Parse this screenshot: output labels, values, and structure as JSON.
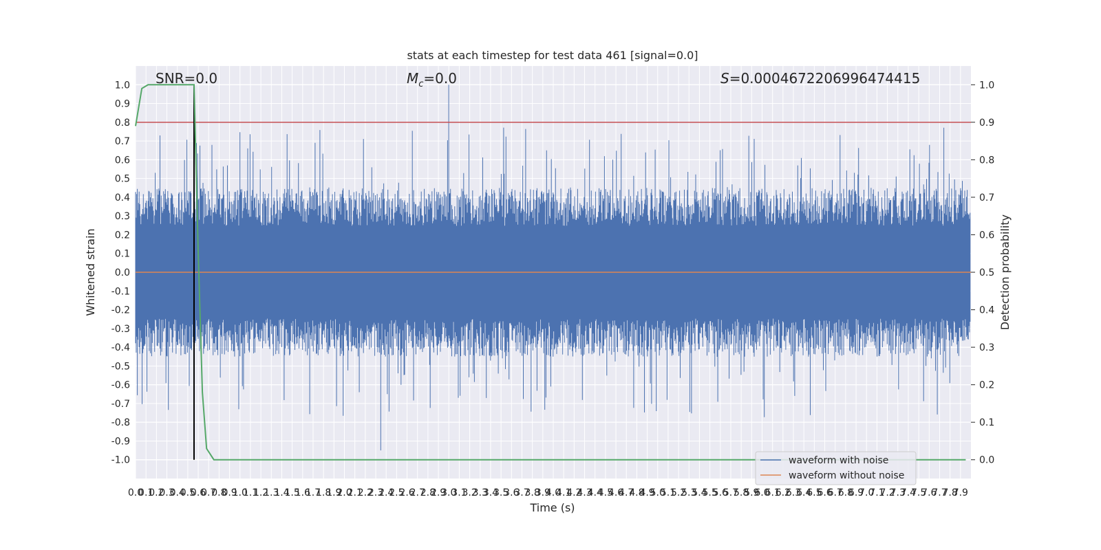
{
  "chart_data": {
    "type": "line",
    "title": "stats at each timestep for test data 461 [signal=0.0]",
    "xlabel": "Time (s)",
    "ylabel": "Whitened strain",
    "ylabel_right": "Detection probability",
    "xlim": [
      0,
      8
    ],
    "ylim": [
      -1.1,
      1.1
    ],
    "ylim_right": [
      -0.05,
      1.05
    ],
    "x_ticks": [
      "0.0",
      "0.1",
      "0.2",
      "0.3",
      "0.4",
      "0.5",
      "0.6",
      "0.7",
      "0.8",
      "0.9",
      "1.0",
      "1.1",
      "1.2",
      "1.3",
      "1.4",
      "1.5",
      "1.6",
      "1.7",
      "1.8",
      "1.9",
      "2.0",
      "2.1",
      "2.2",
      "2.3",
      "2.4",
      "2.5",
      "2.6",
      "2.7",
      "2.8",
      "2.9",
      "3.0",
      "3.1",
      "3.2",
      "3.3",
      "3.4",
      "3.5",
      "3.6",
      "3.7",
      "3.8",
      "3.9",
      "4.0",
      "4.1",
      "4.2",
      "4.3",
      "4.4",
      "4.5",
      "4.6",
      "4.7",
      "4.8",
      "4.9",
      "5.0",
      "5.1",
      "5.2",
      "5.3",
      "5.4",
      "5.5",
      "5.6",
      "5.7",
      "5.8",
      "5.9",
      "6.0",
      "6.1",
      "6.2",
      "6.3",
      "6.4",
      "6.5",
      "6.6",
      "6.7",
      "6.8",
      "6.9",
      "7.0",
      "7.1",
      "7.2",
      "7.3",
      "7.4",
      "7.5",
      "7.6",
      "7.7",
      "7.8",
      "7.9"
    ],
    "y_ticks": [
      "1.0",
      "0.9",
      "0.8",
      "0.7",
      "0.6",
      "0.5",
      "0.4",
      "0.3",
      "0.2",
      "0.1",
      "0.0",
      "-0.1",
      "-0.2",
      "-0.3",
      "-0.4",
      "-0.5",
      "-0.6",
      "-0.7",
      "-0.8",
      "-0.9",
      "-1.0"
    ],
    "y_ticks_right": [
      "1.0",
      "0.9",
      "0.8",
      "0.7",
      "0.6",
      "0.5",
      "0.4",
      "0.3",
      "0.2",
      "0.1",
      "0.0"
    ],
    "annotations": {
      "snr": "SNR=0.0",
      "mc_symbol": "M",
      "mc_sub": "c",
      "mc_value": "=0.0",
      "s_symbol": "S",
      "s_value": "=0.0004672206996474415"
    },
    "threshold_line_right": 0.9,
    "event_time": 0.56,
    "noise_envelope": {
      "typical_max": 0.45,
      "typical_min": -0.45,
      "peak_max": 1.0,
      "peak_min": -0.95
    },
    "series": [
      {
        "name": "waveform with noise",
        "color": "#4c72b0"
      },
      {
        "name": "waveform without noise",
        "color": "#dd8452",
        "value": 0.0
      },
      {
        "name": "detection probability",
        "color": "#55a868",
        "x": [
          0.0,
          0.06,
          0.12,
          0.2,
          0.3,
          0.4,
          0.5,
          0.56,
          0.6,
          0.64,
          0.68,
          0.75,
          1.0,
          2.0,
          3.0,
          4.0,
          5.0,
          6.0,
          7.0,
          7.95
        ],
        "values": [
          0.89,
          0.99,
          1.0,
          1.0,
          1.0,
          1.0,
          1.0,
          1.0,
          0.55,
          0.18,
          0.03,
          0.0,
          0.0,
          0.0,
          0.0,
          0.0,
          0.0,
          0.0,
          0.0,
          0.0
        ]
      }
    ],
    "legend": {
      "position": "lower-right",
      "entries": [
        "waveform with noise",
        "waveform without noise"
      ]
    },
    "grid": true,
    "colors": {
      "background": "#eaeaf2",
      "grid": "#ffffff",
      "threshold": "#c44e52",
      "event": "#000000"
    }
  }
}
